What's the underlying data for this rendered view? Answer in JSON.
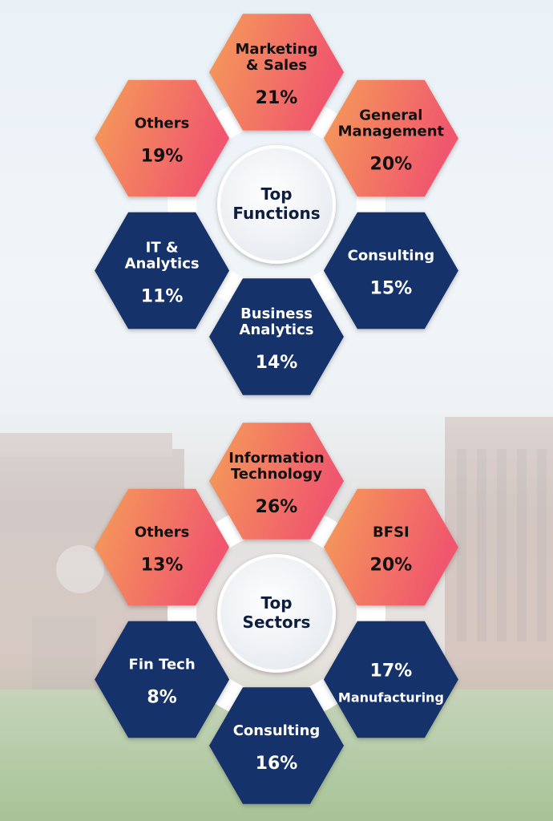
{
  "colors": {
    "warm_start": "#f59e58",
    "warm_end": "#f0566e",
    "navy": "#16336b",
    "ring": "#ffffff"
  },
  "chart_data": [
    {
      "type": "pie",
      "title": "Top Functions",
      "title_lines": [
        "Top",
        "Functions"
      ],
      "segments": [
        {
          "label_lines": [
            "Marketing",
            "& Sales"
          ],
          "value": 21,
          "value_text": "21%",
          "tone": "warm",
          "text_color": "dark"
        },
        {
          "label_lines": [
            "General",
            "Management"
          ],
          "value": 20,
          "value_text": "20%",
          "tone": "warm",
          "text_color": "dark"
        },
        {
          "label_lines": [
            "Consulting"
          ],
          "value": 15,
          "value_text": "15%",
          "tone": "navy",
          "text_color": "light"
        },
        {
          "label_lines": [
            "Business",
            "Analytics"
          ],
          "value": 14,
          "value_text": "14%",
          "tone": "navy",
          "text_color": "light"
        },
        {
          "label_lines": [
            "IT &",
            "Analytics"
          ],
          "value": 11,
          "value_text": "11%",
          "tone": "navy",
          "text_color": "light"
        },
        {
          "label_lines": [
            "Others"
          ],
          "value": 19,
          "value_text": "19%",
          "tone": "warm",
          "text_color": "dark"
        }
      ]
    },
    {
      "type": "pie",
      "title": "Top Sectors",
      "title_lines": [
        "Top",
        "Sectors"
      ],
      "segments": [
        {
          "label_lines": [
            "Information",
            "Technology"
          ],
          "value": 26,
          "value_text": "26%",
          "tone": "warm",
          "text_color": "dark"
        },
        {
          "label_lines": [
            "BFSI"
          ],
          "value": 20,
          "value_text": "20%",
          "tone": "warm",
          "text_color": "dark"
        },
        {
          "label_lines": [
            "Manufacturing"
          ],
          "value": 17,
          "value_text": "17%",
          "tone": "navy",
          "text_color": "light",
          "value_first": true
        },
        {
          "label_lines": [
            "Consulting"
          ],
          "value": 16,
          "value_text": "16%",
          "tone": "navy",
          "text_color": "light"
        },
        {
          "label_lines": [
            "Fin Tech"
          ],
          "value": 8,
          "value_text": "8%",
          "tone": "navy",
          "text_color": "light"
        },
        {
          "label_lines": [
            "Others"
          ],
          "value": 13,
          "value_text": "13%",
          "tone": "warm",
          "text_color": "dark"
        }
      ]
    }
  ]
}
